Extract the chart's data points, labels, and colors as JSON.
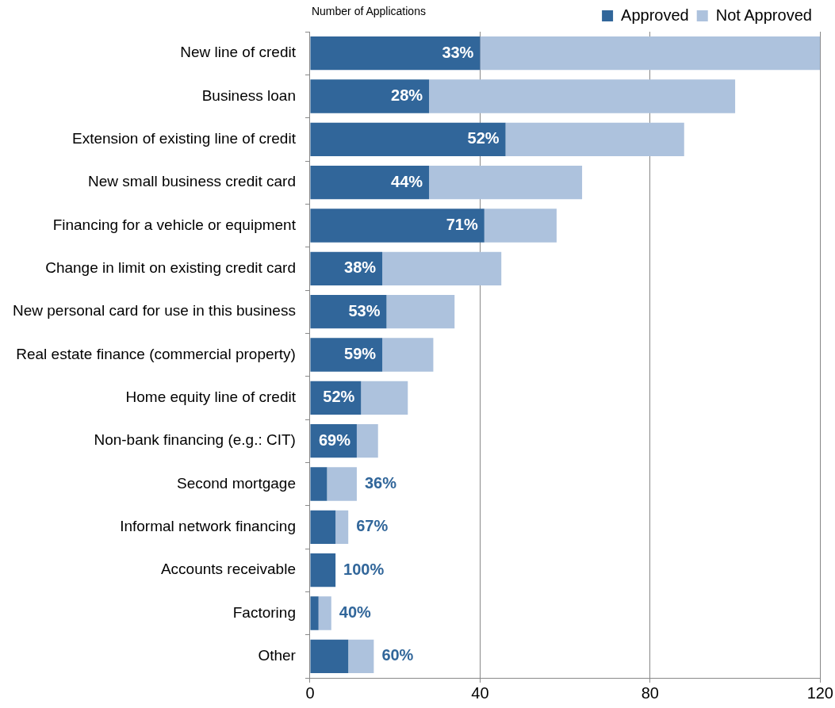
{
  "chart_data": {
    "type": "bar",
    "orientation": "horizontal",
    "stacked": true,
    "xlabel": "Number of Applications",
    "categories": [
      "New line of credit",
      "Business loan",
      "Extension of existing line of credit",
      "New small business credit card",
      "Financing for a vehicle or equipment",
      "Change in limit on existing credit card",
      "New personal card for use in this business",
      "Real estate finance (commercial property)",
      "Home equity line of credit",
      "Non-bank financing (e.g.: CIT)",
      "Second mortgage",
      "Informal network financing",
      "Accounts receivable",
      "Factoring",
      "Other"
    ],
    "series": [
      {
        "name": "Approved",
        "color": "#31669a",
        "values": [
          40,
          28,
          46,
          28,
          41,
          17,
          18,
          17,
          12,
          11,
          4,
          6,
          6,
          2,
          9
        ]
      },
      {
        "name": "Not Approved",
        "color": "#adc2dd",
        "values": [
          80,
          72,
          42,
          36,
          17,
          28,
          16,
          12,
          11,
          5,
          7,
          3,
          0,
          3,
          6
        ]
      }
    ],
    "annotations": [
      {
        "text": "33%",
        "x": 40,
        "y": "New line of credit"
      },
      {
        "text": "28%",
        "x": 28,
        "y": "Business loan"
      },
      {
        "text": "52%",
        "x": 46,
        "y": "Extension of existing line of credit"
      },
      {
        "text": "44%",
        "x": 28,
        "y": "New small business credit card"
      },
      {
        "text": "71%",
        "x": 41,
        "y": "Financing for a vehicle or equipment"
      },
      {
        "text": "38%",
        "x": 17,
        "y": "Change in limit on existing credit card"
      },
      {
        "text": "53%",
        "x": 18,
        "y": "New personal card for use in this business"
      },
      {
        "text": "59%",
        "x": 17,
        "y": "Real estate finance (commercial property)"
      },
      {
        "text": "52%",
        "x": 12,
        "y": "Home equity line of credit"
      },
      {
        "text": "69%",
        "x": 11,
        "y": "Non-bank financing (e.g.: CIT)"
      },
      {
        "text": "36%",
        "x": 11,
        "y": "Second mortgage"
      },
      {
        "text": "67%",
        "x": 9,
        "y": "Informal network financing"
      },
      {
        "text": "100%",
        "x": 6,
        "y": "Accounts receivable"
      },
      {
        "text": "40%",
        "x": 5,
        "y": "Factoring"
      },
      {
        "text": "60%",
        "x": 15,
        "y": "Other"
      }
    ],
    "xlim": [
      0,
      120
    ],
    "xticks": [
      0,
      40,
      80,
      120
    ],
    "grid": "x",
    "legend": "top right"
  }
}
